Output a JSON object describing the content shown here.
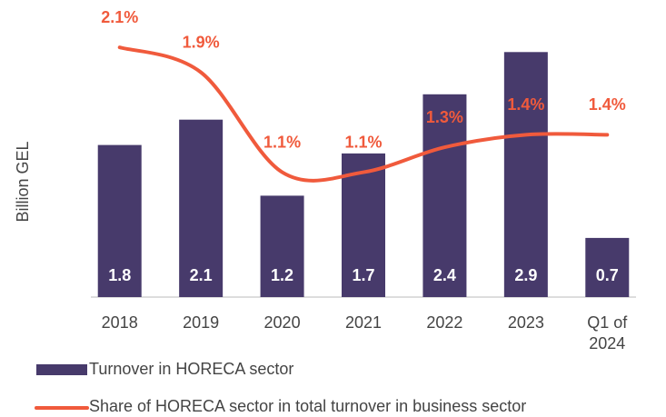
{
  "chart_data": {
    "type": "bar",
    "y_label": "Billion GEL",
    "categories": [
      "2018",
      "2019",
      "2020",
      "2021",
      "2022",
      "2023",
      "Q1 of 2024"
    ],
    "series": [
      {
        "name": "Turnover in HORECA sector",
        "color": "#473a6b",
        "values": [
          1.8,
          2.1,
          1.2,
          1.7,
          2.4,
          2.9,
          0.7
        ]
      },
      {
        "name": "Share of HORECA sector in total turnover in business sector",
        "color": "#f05a3c",
        "type": "line",
        "axis": "y2",
        "values": [
          2.1,
          1.9,
          1.1,
          1.1,
          1.3,
          1.4,
          1.4
        ],
        "value_labels": [
          "2.1%",
          "1.9%",
          "1.1%",
          "1.1%",
          "1.3%",
          "1.4%",
          "1.4%"
        ]
      }
    ],
    "ylim": [
      0,
      3
    ],
    "y2lim": [
      0.1,
      2.13
    ],
    "grid": false
  }
}
